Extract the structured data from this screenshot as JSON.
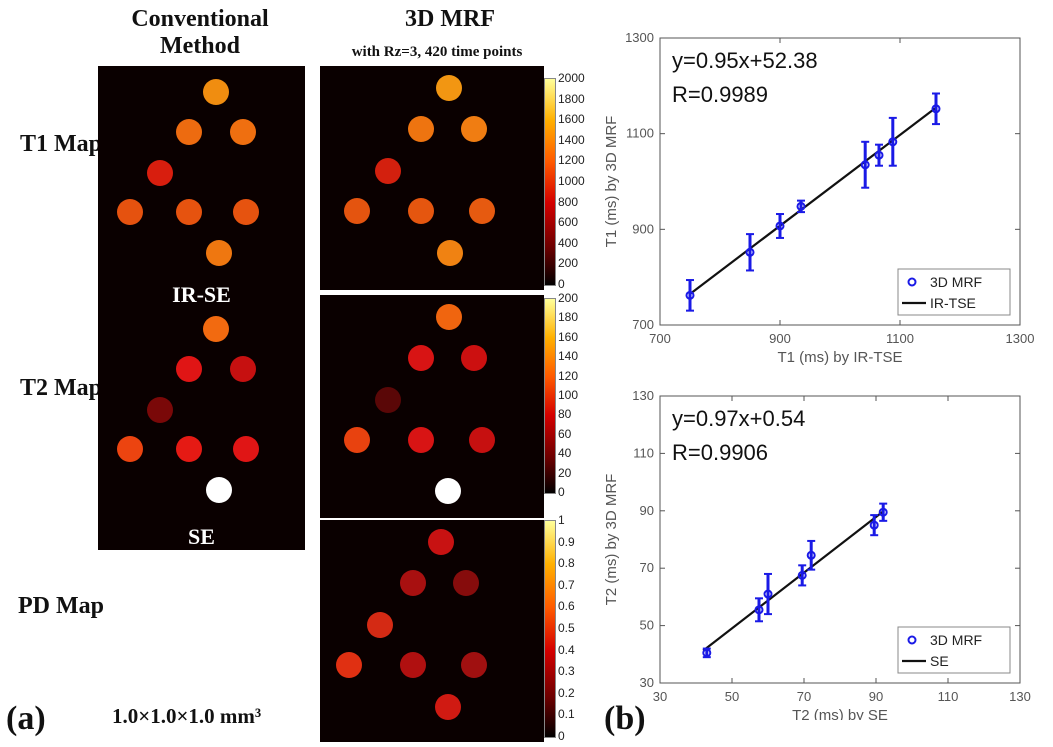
{
  "headers": {
    "conventional": "Conventional Method",
    "mrf": "3D MRF",
    "mrf_sub": "with Rz=3, 420 time points"
  },
  "rows": {
    "t1": "T1 Map",
    "t2": "T2 Map",
    "pd": "PD Map"
  },
  "method_labels": {
    "ir_se": "IR-SE",
    "se": "SE"
  },
  "resolution": "1.0×1.0×1.0 mm³",
  "panel_labels": {
    "a": "(a)",
    "b": "(b)"
  },
  "colorbars": {
    "t1": [
      "2000",
      "1800",
      "1600",
      "1400",
      "1200",
      "1000",
      "800",
      "600",
      "400",
      "200",
      "0"
    ],
    "t2": [
      "200",
      "180",
      "160",
      "140",
      "120",
      "100",
      "80",
      "60",
      "40",
      "20",
      "0"
    ],
    "pd": [
      "1",
      "0.9",
      "0.8",
      "0.7",
      "0.6",
      "0.5",
      "0.4",
      "0.3",
      "0.2",
      "0.1",
      "0"
    ]
  },
  "phantom_colors": {
    "t1_conv": [
      "#f08d10",
      "#ed6b10",
      "#ef6f10",
      "#d81e0e",
      "#e5520f",
      "#e6530f",
      "#e6530f",
      "#ef7710"
    ],
    "t1_mrf": [
      "#f29612",
      "#ee7410",
      "#f07d12",
      "#d3200e",
      "#e4540f",
      "#e5560f",
      "#e65a10",
      "#f08212"
    ],
    "t2_conv": [
      "#f26a10",
      "#e01515",
      "#c61010",
      "#7a0808",
      "#ec4410",
      "#e51a14",
      "#e01515",
      "#ffffff"
    ],
    "t2_mrf": [
      "#f0650f",
      "#d81414",
      "#cc1010",
      "#5a0707",
      "#e8420f",
      "#d81414",
      "#c61010",
      "#ffffff"
    ],
    "pd_mrf": [
      "#c81212",
      "#a81010",
      "#860c0c",
      "#d42a14",
      "#e03012",
      "#b01010",
      "#a01010",
      "#d01a12"
    ]
  },
  "chart_data": [
    {
      "type": "scatter",
      "xlabel": "T1 (ms) by IR-TSE",
      "ylabel": "T1 (ms) by 3D MRF",
      "xlim": [
        700,
        1300
      ],
      "ylim": [
        700,
        1300
      ],
      "xticks": [
        "700",
        "900",
        "1100",
        "1300"
      ],
      "yticks": [
        "700",
        "900",
        "1100",
        "1300"
      ],
      "equation": "y=0.95x+52.38",
      "r": "R=0.9989",
      "legend": [
        "3D MRF",
        "IR-TSE"
      ],
      "legend_position": "bottom-right",
      "points": [
        {
          "x": 750,
          "y": 762,
          "err": 32
        },
        {
          "x": 850,
          "y": 852,
          "err": 38
        },
        {
          "x": 900,
          "y": 907,
          "err": 25
        },
        {
          "x": 935,
          "y": 948,
          "err": 12
        },
        {
          "x": 1042,
          "y": 1035,
          "err": 48
        },
        {
          "x": 1065,
          "y": 1055,
          "err": 22
        },
        {
          "x": 1088,
          "y": 1083,
          "err": 50
        },
        {
          "x": 1160,
          "y": 1152,
          "err": 32
        }
      ],
      "fit": {
        "slope": 0.95,
        "intercept": 52.38,
        "x_range": [
          750,
          1160
        ]
      }
    },
    {
      "type": "scatter",
      "xlabel": "T2 (ms) by SE",
      "ylabel": "T2 (ms) by 3D MRF",
      "xlim": [
        30,
        130
      ],
      "ylim": [
        30,
        130
      ],
      "xticks": [
        "30",
        "50",
        "70",
        "90",
        "110",
        "130"
      ],
      "yticks": [
        "30",
        "50",
        "70",
        "90",
        "110",
        "130"
      ],
      "equation": "y=0.97x+0.54",
      "r": "R=0.9906",
      "legend": [
        "3D MRF",
        "SE"
      ],
      "legend_position": "bottom-right",
      "points": [
        {
          "x": 43,
          "y": 40.5,
          "err": 1.5
        },
        {
          "x": 57.5,
          "y": 55.5,
          "err": 4
        },
        {
          "x": 60,
          "y": 61,
          "err": 7
        },
        {
          "x": 69.5,
          "y": 67.5,
          "err": 3.5
        },
        {
          "x": 72,
          "y": 74.5,
          "err": 5
        },
        {
          "x": 89.5,
          "y": 85,
          "err": 3.5
        },
        {
          "x": 92,
          "y": 89.5,
          "err": 3
        }
      ],
      "fit": {
        "slope": 0.97,
        "intercept": 0.54,
        "x_range": [
          42,
          92
        ]
      }
    }
  ]
}
